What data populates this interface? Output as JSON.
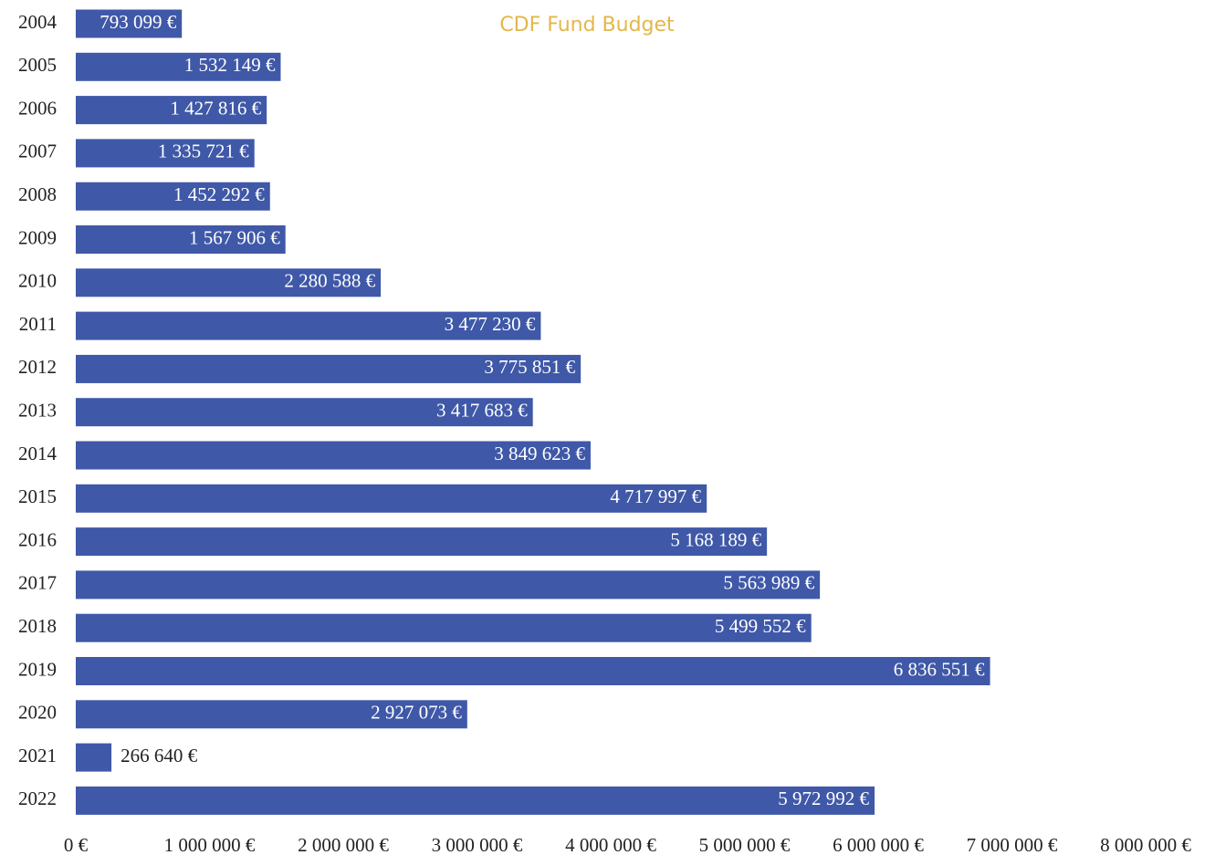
{
  "chart_data": {
    "type": "bar",
    "orientation": "horizontal",
    "title": "CDF Fund Budget",
    "categories": [
      "2004",
      "2005",
      "2006",
      "2007",
      "2008",
      "2009",
      "2010",
      "2011",
      "2012",
      "2013",
      "2014",
      "2015",
      "2016",
      "2017",
      "2018",
      "2019",
      "2020",
      "2021",
      "2022"
    ],
    "values": [
      793099,
      1532149,
      1427816,
      1335721,
      1452292,
      1567906,
      2280588,
      3477230,
      3775851,
      3417683,
      3849623,
      4717997,
      5168189,
      5563989,
      5499552,
      6836551,
      2927073,
      266640,
      5972992
    ],
    "value_labels": [
      "793 099 €",
      "1 532 149 €",
      "1 427 816 €",
      "1 335 721 €",
      "1 452 292 €",
      "1 567 906 €",
      "2 280 588 €",
      "3 477 230 €",
      "3 775 851 €",
      "3 417 683 €",
      "3 849 623 €",
      "4 717 997 €",
      "5 168 189 €",
      "5 563 989 €",
      "5 499 552 €",
      "6 836 551 €",
      "2 927 073 €",
      "266 640 €",
      "5 972 992 €"
    ],
    "color": "#3f58a8",
    "title_color": "#e3b74a",
    "xlim": [
      0,
      8000000
    ],
    "xticks": [
      {
        "value": 0,
        "label": "0 €"
      },
      {
        "value": 1000000,
        "label": "1 000 000 €"
      },
      {
        "value": 2000000,
        "label": "2 000 000 €"
      },
      {
        "value": 3000000,
        "label": "3 000 000 €"
      },
      {
        "value": 4000000,
        "label": "4 000 000 €"
      },
      {
        "value": 5000000,
        "label": "5 000 000 €"
      },
      {
        "value": 6000000,
        "label": "6 000 000 €"
      },
      {
        "value": 7000000,
        "label": "7 000 000 €"
      },
      {
        "value": 8000000,
        "label": "8 000 000 €"
      }
    ],
    "grid": false
  }
}
